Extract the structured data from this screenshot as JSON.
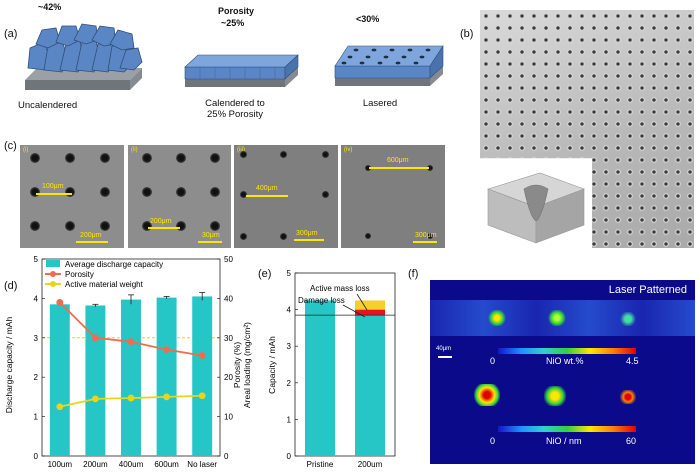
{
  "panels": {
    "a": "(a)",
    "b": "(b)",
    "c": "(c)",
    "d": "(d)",
    "e": "(e)",
    "f": "(f)"
  },
  "panel_a": {
    "porosity_title": "Porosity",
    "items": [
      {
        "value": "~42%",
        "caption": "Uncalendered"
      },
      {
        "value": "~25%",
        "caption": "Calendered to\n25% Porosity"
      },
      {
        "value": "<30%",
        "caption": "Lasered"
      }
    ]
  },
  "panel_c": {
    "images": [
      {
        "roman": "(i)",
        "spacing": "100μm",
        "scale": "200μm"
      },
      {
        "roman": "(ii)",
        "spacing": "200μm",
        "scale": "30μm"
      },
      {
        "roman": "(iii)",
        "spacing": "400μm",
        "scale": "300μm"
      },
      {
        "roman": "(iv)",
        "spacing": "600μm",
        "scale": "300μm"
      }
    ]
  },
  "chart_data": [
    {
      "type": "bar",
      "panel": "(d)",
      "categories": [
        "100um",
        "200um",
        "400um",
        "600um",
        "No laser"
      ],
      "series": [
        {
          "name": "Average discharge capacity",
          "values": [
            3.85,
            3.82,
            3.97,
            4.02,
            4.05
          ],
          "errors": [
            0.02,
            0.03,
            0.12,
            0.03,
            0.1
          ],
          "axis": "left",
          "color": "#26c6c6"
        },
        {
          "name": "Porosity",
          "values": [
            39,
            30,
            29,
            27,
            25.5
          ],
          "axis": "right",
          "color": "#f26b4c"
        },
        {
          "name": "Active material weight",
          "values": [
            12.5,
            14.5,
            14.7,
            15,
            15.3
          ],
          "axis": "right",
          "color": "#e8d51a"
        }
      ],
      "ylabel": "Discharge capacity / mAh",
      "ylabel_right": [
        "Porosity (%)",
        "Areal loading (mg/cm²)"
      ],
      "ylim": [
        0,
        5
      ],
      "ylim_right": [
        0,
        50
      ],
      "yticks": [
        "0",
        "1",
        "2",
        "3",
        "4",
        "5"
      ],
      "yticks_right": [
        "0",
        "10",
        "20",
        "30",
        "40",
        "50"
      ],
      "reference_line_right": 30,
      "legend": "top-left"
    },
    {
      "type": "bar",
      "panel": "(e)",
      "categories": [
        "Pristine",
        "200um"
      ],
      "series": [
        {
          "name": "Capacity",
          "values": [
            4.25,
            3.85
          ],
          "color": "#26c6c6"
        },
        {
          "name": "Damage loss",
          "values": [
            0,
            0.15
          ],
          "color": "#e8141c"
        },
        {
          "name": "Active mass loss",
          "values": [
            0,
            0.25
          ],
          "color": "#f5d02a"
        }
      ],
      "ylabel": "Capacity / mAh",
      "ylim": [
        0,
        5
      ],
      "yticks": [
        "0",
        "1",
        "2",
        "3",
        "4",
        "5"
      ],
      "reference_line": 3.85,
      "annotations": [
        "Active mass loss",
        "Damage loss"
      ]
    }
  ],
  "panel_f": {
    "title": "Laser Patterned",
    "scale": "40μm",
    "colorbar1": {
      "min": "0",
      "label": "NiO wt.%",
      "max": "4.5"
    },
    "colorbar2": {
      "min": "0",
      "label": "NiO / nm",
      "max": "60"
    }
  }
}
